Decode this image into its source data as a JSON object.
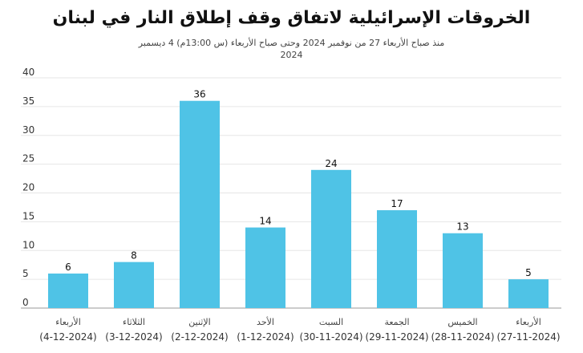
{
  "chart_data": {
    "type": "bar",
    "title": "الخروقات الإسرائيلية لاتفاق وقف إطلاق النار في لبنان",
    "subtitle": "منذ صباح الأربعاء 27 من نوفمبر 2024 وحتى صباح الأربعاء (س 13:00م) 4 ديسمبر",
    "subtitle_year": "2024",
    "categories": [
      {
        "day": "الأربعاء",
        "date": "(4-12-2024)"
      },
      {
        "day": "الثلاثاء",
        "date": "(3-12-2024)"
      },
      {
        "day": "الإثنين",
        "date": "(2-12-2024)"
      },
      {
        "day": "الأحد",
        "date": "(1-12-2024)"
      },
      {
        "day": "السبت",
        "date": "(30-11-2024)"
      },
      {
        "day": "الجمعة",
        "date": "(29-11-2024)"
      },
      {
        "day": "الخميس",
        "date": "(28-11-2024)"
      },
      {
        "day": "الأربعاء",
        "date": "(27-11-2024)"
      }
    ],
    "values": [
      6,
      8,
      36,
      14,
      24,
      17,
      13,
      5
    ],
    "ylim": [
      0,
      40
    ],
    "yticks": [
      0,
      5,
      10,
      15,
      20,
      25,
      30,
      35,
      40
    ],
    "grid": true,
    "bar_color": "#4fc3e6"
  }
}
